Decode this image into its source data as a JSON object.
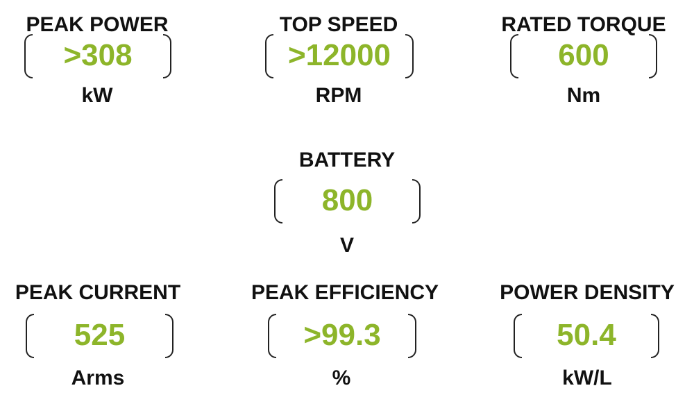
{
  "accent_color": "#8db52a",
  "specs": [
    {
      "title": "PEAK POWER",
      "value": ">308",
      "unit": "kW"
    },
    {
      "title": "TOP SPEED",
      "value": ">12000",
      "unit": "RPM"
    },
    {
      "title": "RATED TORQUE",
      "value": "600",
      "unit": "Nm"
    },
    {
      "title": "BATTERY",
      "value": "800",
      "unit": "V"
    },
    {
      "title": "PEAK CURRENT",
      "value": "525",
      "unit": "Arms"
    },
    {
      "title": "PEAK EFFICIENCY",
      "value": ">99.3",
      "unit": "%"
    },
    {
      "title": "POWER DENSITY",
      "value": "50.4",
      "unit": "kW/L"
    }
  ]
}
